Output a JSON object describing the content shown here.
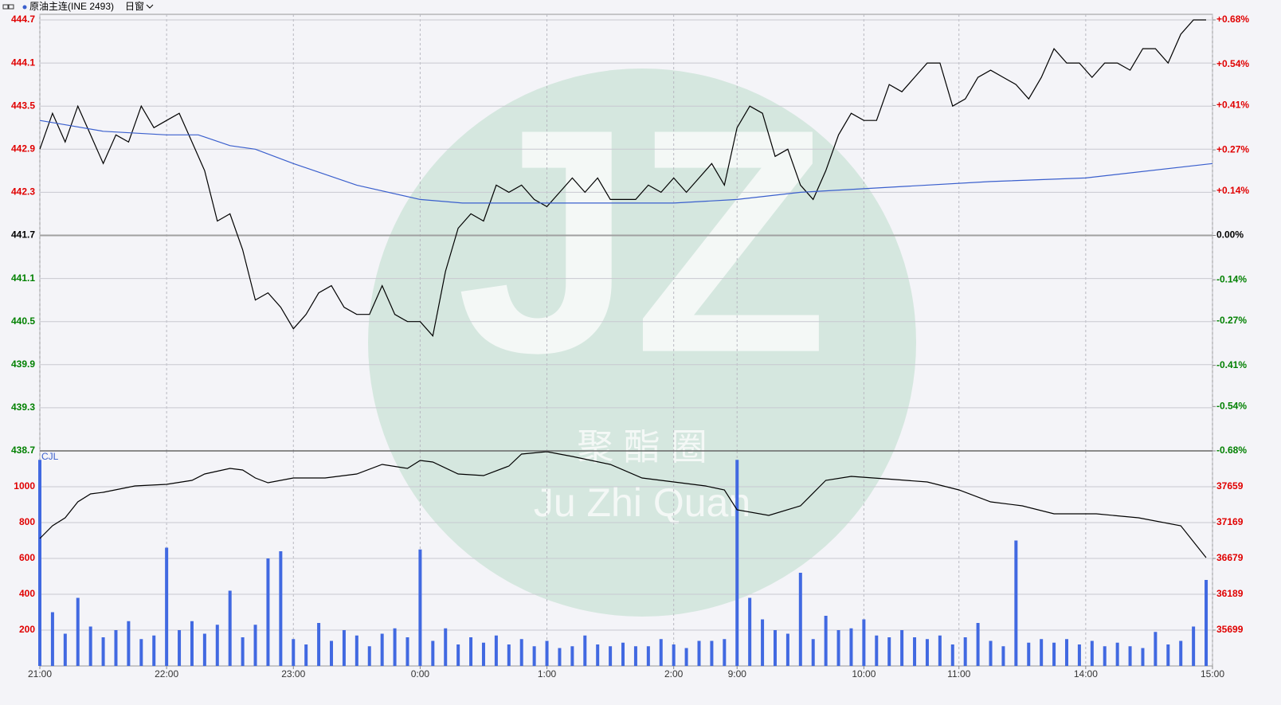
{
  "header": {
    "symbol": "原油主连(INE 2493)",
    "window": "日窗"
  },
  "watermark": {
    "logo": "JZ",
    "name_cn": "聚 酯 圈",
    "name_en": "Ju Zhi Quan"
  },
  "chart_data": [
    {
      "type": "line",
      "xlim": [
        0,
        555
      ],
      "ylim": [
        438.7,
        444.7
      ],
      "yticks": [
        438.7,
        439.3,
        439.9,
        440.5,
        441.1,
        441.7,
        442.3,
        442.9,
        443.5,
        444.1,
        444.7
      ],
      "y2lim": [
        -0.68,
        0.68
      ],
      "y2ticks": [
        {
          "value": -0.68,
          "label": "-0.68%"
        },
        {
          "value": -0.54,
          "label": "-0.54%"
        },
        {
          "value": -0.41,
          "label": "-0.41%"
        },
        {
          "value": -0.27,
          "label": "-0.27%"
        },
        {
          "value": -0.14,
          "label": "-0.14%"
        },
        {
          "value": 0,
          "label": "0.00%"
        },
        {
          "value": 0.14,
          "label": "+0.14%"
        },
        {
          "value": 0.27,
          "label": "+0.27%"
        },
        {
          "value": 0.41,
          "label": "+0.41%"
        },
        {
          "value": 0.54,
          "label": "+0.54%"
        },
        {
          "value": 0.68,
          "label": "+0.68%"
        }
      ],
      "grid": true,
      "series": [
        {
          "color": "#000000",
          "x": [
            0,
            6,
            12,
            18,
            24,
            30,
            36,
            42,
            48,
            54,
            60,
            66,
            72,
            78,
            84,
            90,
            96,
            102,
            108,
            114,
            120,
            126,
            132,
            138,
            144,
            150,
            156,
            162,
            168,
            174,
            180,
            186,
            192,
            198,
            204,
            210,
            216,
            222,
            228,
            234,
            240,
            246,
            252,
            258,
            264,
            270,
            276,
            282,
            288,
            294,
            300,
            306,
            312,
            318,
            324,
            330,
            336,
            342,
            348,
            354,
            360,
            366,
            372,
            378,
            384,
            390,
            396,
            402,
            408,
            414,
            420,
            426,
            432,
            438,
            444,
            450,
            456,
            462,
            468,
            474,
            480,
            486,
            492,
            498,
            504,
            510,
            516,
            522,
            528,
            534,
            540,
            546,
            552
          ],
          "values": [
            442.9,
            443.4,
            443.0,
            443.5,
            443.1,
            442.7,
            443.1,
            443.0,
            443.5,
            443.2,
            443.3,
            443.4,
            443.0,
            442.6,
            441.9,
            442.0,
            441.5,
            440.8,
            440.9,
            440.7,
            440.4,
            440.6,
            440.9,
            441.0,
            440.7,
            440.6,
            440.6,
            441.0,
            440.6,
            440.5,
            440.5,
            440.3,
            441.2,
            441.8,
            442.0,
            441.9,
            442.4,
            442.3,
            442.4,
            442.2,
            442.1,
            442.3,
            442.5,
            442.3,
            442.5,
            442.2,
            442.2,
            442.2,
            442.4,
            442.3,
            442.5,
            442.3,
            442.5,
            442.7,
            442.4,
            443.2,
            443.5,
            443.4,
            442.8,
            442.9,
            442.4,
            442.2,
            442.6,
            443.1,
            443.4,
            443.3,
            443.3,
            443.8,
            443.7,
            443.9,
            444.1,
            444.1,
            443.5,
            443.6,
            443.9,
            444.0,
            443.9,
            443.8,
            443.6,
            443.9,
            444.3,
            444.1,
            444.1,
            443.9,
            444.1,
            444.1,
            444.0,
            444.3,
            444.3,
            444.1,
            444.5,
            444.7,
            444.7
          ]
        },
        {
          "color": "#3a5fcd",
          "x": [
            0,
            10,
            30,
            60,
            75,
            90,
            102,
            120,
            150,
            180,
            200,
            240,
            300,
            330,
            360,
            390,
            450,
            495,
            555
          ],
          "values": [
            443.3,
            443.25,
            443.15,
            443.1,
            443.1,
            442.95,
            442.9,
            442.7,
            442.4,
            442.2,
            442.15,
            442.15,
            442.15,
            442.2,
            442.3,
            442.35,
            442.45,
            442.5,
            442.7
          ]
        }
      ]
    },
    {
      "type": "bar",
      "title": "CJL",
      "xlim": [
        0,
        555
      ],
      "xticks": [
        {
          "value": 0,
          "label": "21:00"
        },
        {
          "value": 60,
          "label": "22:00"
        },
        {
          "value": 120,
          "label": "23:00"
        },
        {
          "value": 180,
          "label": "0:00"
        },
        {
          "value": 240,
          "label": "1:00"
        },
        {
          "value": 300,
          "label": "2:00"
        },
        {
          "value": 330,
          "label": "9:00"
        },
        {
          "value": 390,
          "label": "10:00"
        },
        {
          "value": 435,
          "label": "11:00"
        },
        {
          "value": 495,
          "label": "14:00"
        },
        {
          "value": 555,
          "label": "15:00"
        }
      ],
      "ylim": [
        0,
        1200
      ],
      "yticks": [
        200,
        400,
        600,
        800,
        1000
      ],
      "y2lim": [
        35209,
        38149
      ],
      "y2ticks": [
        35699,
        36189,
        36679,
        37169,
        37659
      ],
      "grid": true,
      "series": [
        {
          "color": "#4169e1",
          "x": [
            0,
            6,
            12,
            18,
            24,
            30,
            36,
            42,
            48,
            54,
            60,
            66,
            72,
            78,
            84,
            90,
            96,
            102,
            108,
            114,
            120,
            126,
            132,
            138,
            144,
            150,
            156,
            162,
            168,
            174,
            180,
            186,
            192,
            198,
            204,
            210,
            216,
            222,
            228,
            234,
            240,
            246,
            252,
            258,
            264,
            270,
            276,
            282,
            288,
            294,
            300,
            306,
            312,
            318,
            324,
            330,
            336,
            342,
            348,
            354,
            360,
            366,
            372,
            378,
            384,
            390,
            396,
            402,
            408,
            414,
            420,
            426,
            432,
            438,
            444,
            450,
            456,
            462,
            468,
            474,
            480,
            486,
            492,
            498,
            504,
            510,
            516,
            522,
            528,
            534,
            540,
            546,
            552
          ],
          "values": [
            1150,
            300,
            180,
            380,
            220,
            160,
            200,
            250,
            150,
            170,
            660,
            200,
            250,
            180,
            230,
            420,
            160,
            230,
            600,
            640,
            150,
            120,
            240,
            140,
            200,
            170,
            110,
            180,
            210,
            160,
            650,
            140,
            210,
            120,
            160,
            130,
            170,
            120,
            150,
            110,
            140,
            100,
            110,
            170,
            120,
            110,
            130,
            110,
            110,
            150,
            120,
            100,
            140,
            140,
            150,
            1150,
            380,
            260,
            200,
            180,
            520,
            150,
            280,
            200,
            210,
            260,
            170,
            160,
            200,
            160,
            150,
            170,
            120,
            160,
            240,
            140,
            110,
            700,
            130,
            150,
            130,
            150,
            120,
            140,
            110,
            130,
            110,
            100,
            190,
            120,
            140,
            220,
            480
          ]
        },
        {
          "type": "line",
          "axis": "y2",
          "color": "#000000",
          "x": [
            0,
            6,
            12,
            18,
            24,
            30,
            45,
            60,
            72,
            78,
            90,
            96,
            102,
            108,
            120,
            135,
            150,
            162,
            174,
            180,
            186,
            198,
            210,
            222,
            228,
            240,
            252,
            270,
            285,
            300,
            315,
            324,
            330,
            345,
            360,
            372,
            384,
            405,
            420,
            435,
            450,
            465,
            480,
            500,
            520,
            540,
            552
          ],
          "values": [
            36951,
            37125,
            37234,
            37452,
            37561,
            37583,
            37670,
            37692,
            37746,
            37833,
            37909,
            37888,
            37779,
            37713,
            37779,
            37779,
            37833,
            37964,
            37909,
            38018,
            37997,
            37833,
            37811,
            37942,
            38105,
            38138,
            38073,
            37964,
            37779,
            37724,
            37670,
            37615,
            37343,
            37267,
            37398,
            37746,
            37801,
            37757,
            37724,
            37615,
            37452,
            37398,
            37289,
            37289,
            37234,
            37125,
            36690
          ]
        }
      ]
    }
  ]
}
